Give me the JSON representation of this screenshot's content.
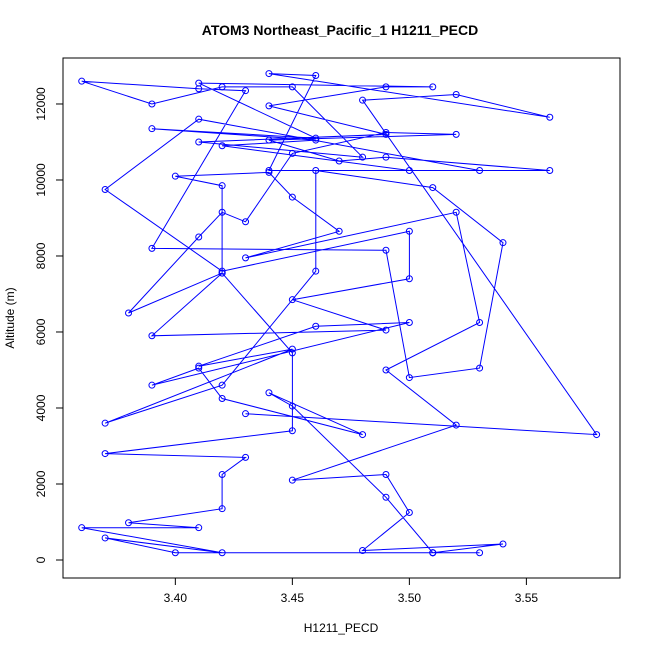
{
  "chart_data": {
    "type": "line",
    "title": "ATOM3 Northeast_Pacific_1 H1211_PECD",
    "x_label": "H1211_PECD",
    "y_label": "Altitude (m)",
    "color": "#0000ff",
    "marker": "open-circle",
    "x": [
      3.51,
      3.53,
      3.51,
      3.54,
      3.48,
      3.5,
      3.49,
      3.45,
      3.52,
      3.49,
      3.53,
      3.52,
      3.43,
      3.47,
      3.45,
      3.44,
      3.4,
      3.42,
      3.42,
      3.39,
      3.49,
      3.45,
      3.5,
      3.5,
      3.42,
      3.37,
      3.41,
      3.53,
      3.5,
      3.42,
      3.46,
      3.39,
      3.46,
      3.41,
      3.51,
      3.49,
      3.44,
      3.49,
      3.41,
      3.48,
      3.45,
      3.42,
      3.39,
      3.36,
      3.41,
      3.43,
      3.39,
      3.49,
      3.5,
      3.53,
      3.54,
      3.51,
      3.46,
      3.46,
      3.42,
      3.37,
      3.45,
      3.41,
      3.46,
      3.5,
      3.39,
      3.41,
      3.42,
      3.48,
      3.44,
      3.45,
      3.49,
      3.51,
      3.4,
      3.37,
      3.42,
      3.36,
      3.41,
      3.38,
      3.42,
      3.42,
      3.43,
      3.37,
      3.45,
      3.45,
      3.42,
      3.38,
      3.41,
      3.42,
      3.43,
      3.45,
      3.49,
      3.52,
      3.44,
      3.47,
      3.49,
      3.56,
      3.44,
      3.46,
      3.44,
      3.56,
      3.52,
      3.48,
      3.58,
      3.43
    ],
    "values": [
      190,
      190,
      190,
      420,
      250,
      1250,
      2250,
      2100,
      3550,
      5000,
      6250,
      9150,
      7950,
      8650,
      9550,
      10200,
      10100,
      9850,
      7550,
      5900,
      6050,
      6850,
      7400,
      8650,
      7600,
      9750,
      11600,
      10250,
      10250,
      10900,
      11050,
      11350,
      11100,
      12550,
      12450,
      12450,
      11950,
      11200,
      11000,
      10600,
      12450,
      12450,
      12000,
      12600,
      12400,
      12350,
      8200,
      8150,
      4800,
      5050,
      8350,
      9800,
      10250,
      7600,
      4600,
      3600,
      5550,
      5100,
      6150,
      6250,
      4600,
      5050,
      4250,
      3300,
      4400,
      4050,
      1650,
      190,
      190,
      580,
      190,
      850,
      850,
      980,
      1350,
      2250,
      2700,
      2800,
      3400,
      5450,
      7550,
      6500,
      8500,
      9150,
      8900,
      10700,
      11250,
      11200,
      11050,
      10500,
      10600,
      10250,
      10250,
      12750,
      12800,
      11650,
      12250,
      12100,
      3300,
      3850
    ],
    "xlim": [
      3.352,
      3.59
    ],
    "ylim": [
      -474,
      13210
    ],
    "xticks": [
      {
        "value": 3.4,
        "label": "3.40"
      },
      {
        "value": 3.45,
        "label": "3.45"
      },
      {
        "value": 3.5,
        "label": "3.50"
      },
      {
        "value": 3.55,
        "label": "3.55"
      }
    ],
    "yticks": [
      0,
      2000,
      4000,
      6000,
      8000,
      10000,
      12000
    ]
  }
}
